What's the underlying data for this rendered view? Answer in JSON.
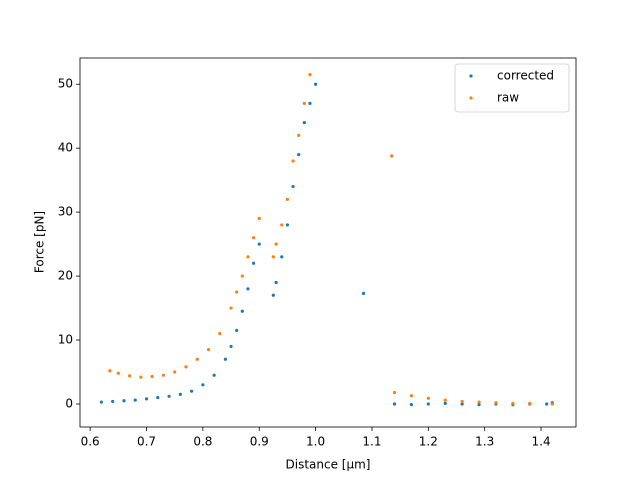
{
  "chart_data": {
    "type": "scatter",
    "x_label": "Distance [μm]",
    "y_label": "Force [pN]",
    "xlim": [
      0.582,
      1.462
    ],
    "ylim": [
      -3.6,
      54.1
    ],
    "xticks": [
      0.6,
      0.7,
      0.8,
      0.9,
      {
        "value": 1,
        "label": "1.0"
      },
      1.1,
      1.2,
      1.3,
      1.4
    ],
    "yticks": [
      0,
      10,
      20,
      30,
      40,
      50
    ],
    "legend": "upper right",
    "series": [
      {
        "name": "corrected",
        "color": "#1f77b4",
        "x": [
          0.62,
          0.64,
          0.66,
          0.68,
          0.7,
          0.72,
          0.74,
          0.76,
          0.78,
          0.8,
          0.82,
          0.84,
          0.85,
          0.86,
          0.87,
          0.88,
          0.89,
          0.9,
          0.925,
          0.93,
          0.94,
          0.95,
          0.96,
          0.97,
          0.98,
          0.99,
          1.0,
          1.085,
          1.14,
          1.17,
          1.2,
          1.23,
          1.26,
          1.29,
          1.32,
          1.35,
          1.38,
          1.41,
          1.42
        ],
        "values": [
          0.3,
          0.4,
          0.5,
          0.6,
          0.8,
          1.0,
          1.2,
          1.5,
          2.0,
          3.0,
          4.5,
          7,
          9,
          11.5,
          14.5,
          18,
          22,
          25,
          17,
          19,
          23,
          28,
          34,
          39,
          44,
          47,
          50,
          17.3,
          0,
          -0.1,
          0,
          0.1,
          0,
          -0.1,
          0,
          -0.1,
          0,
          0,
          0.2
        ]
      },
      {
        "name": "raw",
        "color": "#ff7f0e",
        "x": [
          0.635,
          0.65,
          0.67,
          0.69,
          0.71,
          0.73,
          0.75,
          0.77,
          0.79,
          0.81,
          0.83,
          0.85,
          0.86,
          0.87,
          0.88,
          0.89,
          0.9,
          0.925,
          0.93,
          0.94,
          0.95,
          0.96,
          0.97,
          0.98,
          0.99,
          1.135,
          1.14,
          1.17,
          1.2,
          1.23,
          1.26,
          1.29,
          1.32,
          1.35,
          1.38,
          1.42
        ],
        "values": [
          5.2,
          4.8,
          4.4,
          4.2,
          4.3,
          4.5,
          5.0,
          5.8,
          7.0,
          8.5,
          11,
          15,
          17.5,
          20,
          23,
          26,
          29,
          23,
          25,
          28,
          32,
          38,
          42,
          47,
          51.5,
          38.8,
          1.8,
          1.3,
          0.9,
          0.6,
          0.4,
          0.3,
          0.2,
          0.1,
          0.1,
          0
        ]
      }
    ]
  }
}
